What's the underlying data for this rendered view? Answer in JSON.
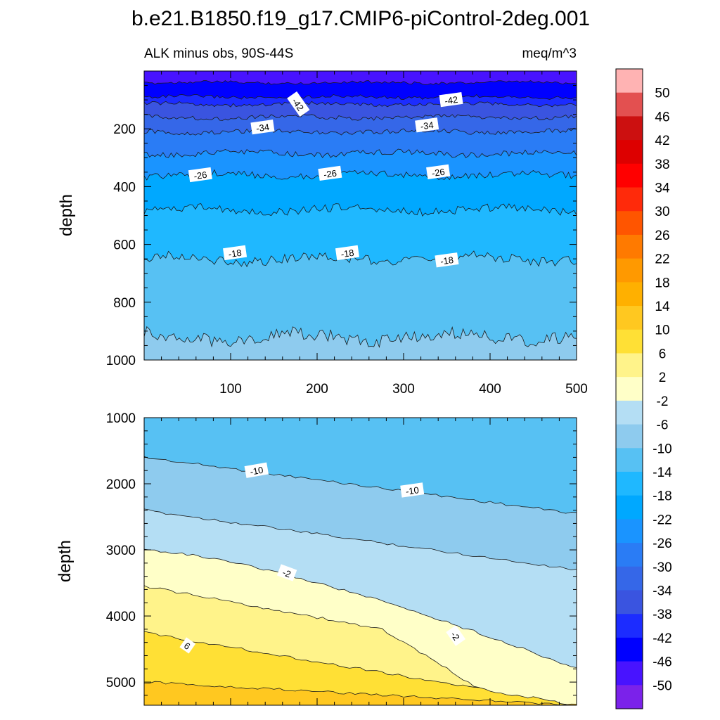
{
  "figure": {
    "title": "b.e21.B1850.f19_g17.CMIP6-piControl-2deg.001",
    "left_string": "ALK minus obs, 90S-44S",
    "right_string": "meq/m^3"
  },
  "colorbar": {
    "labels": [
      "50",
      "46",
      "42",
      "38",
      "34",
      "30",
      "26",
      "22",
      "18",
      "14",
      "10",
      "6",
      "2",
      "-2",
      "-6",
      "-10",
      "-14",
      "-18",
      "-22",
      "-26",
      "-30",
      "-34",
      "-38",
      "-42",
      "-46",
      "-50"
    ],
    "colors": [
      "#ffb3b3",
      "#e35050",
      "#cc1010",
      "#dd0000",
      "#ff0000",
      "#ff2a0a",
      "#ff5500",
      "#ff7a00",
      "#ff9900",
      "#ffb000",
      "#ffc820",
      "#ffe035",
      "#fff38a",
      "#ffffc8",
      "#b4def4",
      "#8ecbee",
      "#57c1f3",
      "#1fb8ff",
      "#00a8ff",
      "#1a94ff",
      "#2a7cf5",
      "#3567e8",
      "#3a54e0",
      "#1c2cff",
      "#0000ff",
      "#4813ff",
      "#7b22ea"
    ]
  },
  "chart_data": [
    {
      "type": "contour",
      "panel": "upper",
      "xlabel": "",
      "ylabel": "depth",
      "xlim": [
        0,
        500
      ],
      "ylim": [
        1000,
        0
      ],
      "xticks": [
        100,
        200,
        300,
        400,
        500
      ],
      "yticks": [
        200,
        400,
        600,
        800,
        1000
      ],
      "fills": [
        {
          "value_range": [
            -50,
            -46
          ],
          "depth_top": 0,
          "depth_bottom": 40
        },
        {
          "value_range": [
            -46,
            -42
          ],
          "depth_top": 40,
          "depth_bottom": 90
        },
        {
          "value_range": [
            -42,
            -38
          ],
          "depth_top": 90,
          "depth_bottom": 115
        },
        {
          "value_range": [
            -38,
            -34
          ],
          "depth_top": 115,
          "depth_bottom": 160
        },
        {
          "value_range": [
            -34,
            -30
          ],
          "depth_top": 160,
          "depth_bottom": 210
        },
        {
          "value_range": [
            -30,
            -26
          ],
          "depth_top": 210,
          "depth_bottom": 285
        },
        {
          "value_range": [
            -26,
            -22
          ],
          "depth_top": 285,
          "depth_bottom": 360
        },
        {
          "value_range": [
            -22,
            -18
          ],
          "depth_top": 360,
          "depth_bottom": 480
        },
        {
          "value_range": [
            -18,
            -14
          ],
          "depth_top": 480,
          "depth_bottom": 650
        },
        {
          "value_range": [
            -14,
            -10
          ],
          "depth_top": 650,
          "depth_bottom": 920
        },
        {
          "value_range": [
            -10,
            -6
          ],
          "depth_top": 920,
          "depth_bottom": 1000
        }
      ],
      "contour_labels": [
        {
          "text": "-42",
          "x": 178,
          "depth": 115
        },
        {
          "text": "-42",
          "x": 355,
          "depth": 100
        },
        {
          "text": "-34",
          "x": 137,
          "depth": 195
        },
        {
          "text": "-34",
          "x": 327,
          "depth": 188
        },
        {
          "text": "-26",
          "x": 65,
          "depth": 360
        },
        {
          "text": "-26",
          "x": 215,
          "depth": 355
        },
        {
          "text": "-26",
          "x": 340,
          "depth": 350
        },
        {
          "text": "-18",
          "x": 105,
          "depth": 630
        },
        {
          "text": "-18",
          "x": 235,
          "depth": 630
        },
        {
          "text": "-18",
          "x": 350,
          "depth": 655
        }
      ]
    },
    {
      "type": "contour",
      "panel": "lower",
      "xlabel": "",
      "ylabel": "depth",
      "xlim": [
        0,
        500
      ],
      "ylim": [
        5350,
        1000
      ],
      "yticks": [
        1000,
        2000,
        3000,
        4000,
        5000
      ],
      "fills": [
        {
          "value_range": [
            -14,
            -10
          ],
          "boundary_depth_x0": 1600,
          "boundary_depth_x500": 2450
        },
        {
          "value_range": [
            -10,
            -6
          ],
          "boundary_depth_x0": 2400,
          "boundary_depth_x500": 3300
        },
        {
          "value_range": [
            -6,
            -2
          ],
          "boundary_depth_x0": 3000,
          "boundary_depth_x500": 4800
        },
        {
          "value_range": [
            -2,
            2
          ],
          "boundary_depth_x0": 3550,
          "boundary_depth_x500": 5350
        },
        {
          "value_range": [
            2,
            6
          ],
          "boundary_depth_x0": 4250,
          "boundary_depth_x500": 5350
        },
        {
          "value_range": [
            6,
            10
          ],
          "boundary_depth_x0": 5000,
          "boundary_depth_x500": 5350
        },
        {
          "value_range": [
            10,
            14
          ],
          "boundary_depth_x0": 5350,
          "boundary_depth_x500": 5350
        }
      ],
      "contour_labels": [
        {
          "text": "-10",
          "x": 130,
          "depth": 1800
        },
        {
          "text": "-10",
          "x": 310,
          "depth": 2100
        },
        {
          "text": "-2",
          "x": 165,
          "depth": 3350
        },
        {
          "text": "-2",
          "x": 360,
          "depth": 4300
        },
        {
          "text": "6",
          "x": 50,
          "depth": 4450
        }
      ]
    }
  ]
}
